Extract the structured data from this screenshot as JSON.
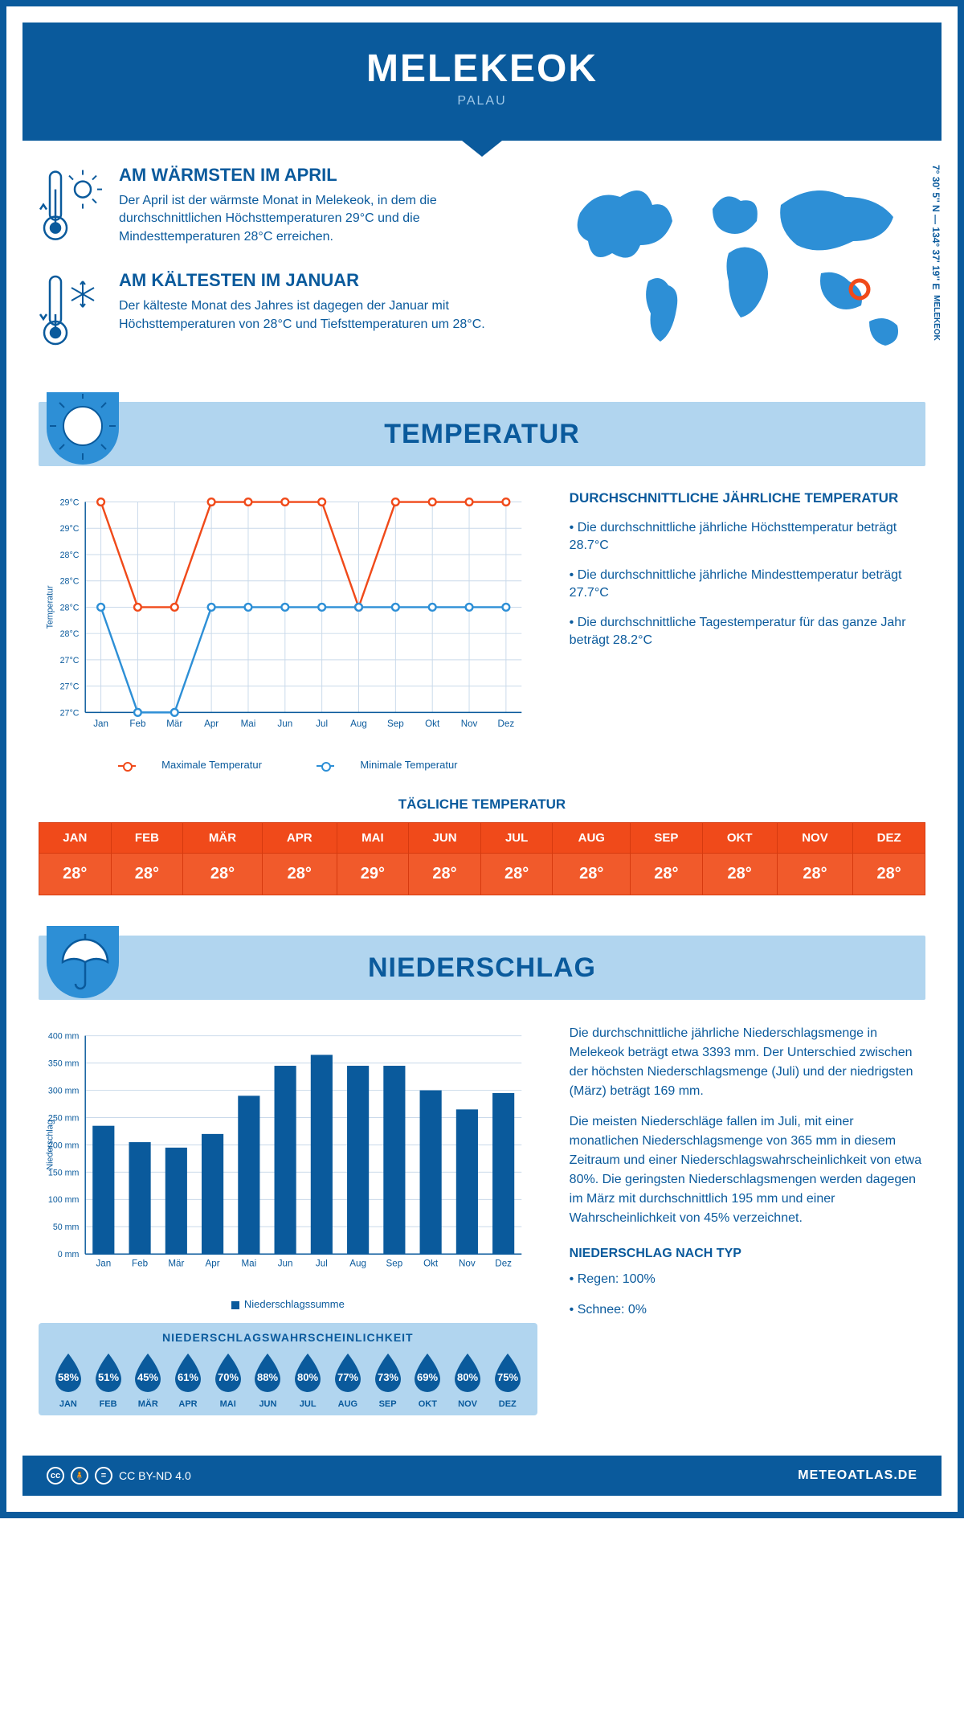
{
  "header": {
    "city": "MELEKEOK",
    "country": "PALAU"
  },
  "coords": "7° 30' 5'' N — 134° 37' 19'' E",
  "coords_label": "MELEKEOK",
  "facts": {
    "warm": {
      "title": "AM WÄRMSTEN IM APRIL",
      "body": "Der April ist der wärmste Monat in Melekeok, in dem die durchschnittlichen Höchsttemperaturen 29°C und die Mindesttemperaturen 28°C erreichen."
    },
    "cold": {
      "title": "AM KÄLTESTEN IM JANUAR",
      "body": "Der kälteste Monat des Jahres ist dagegen der Januar mit Höchsttemperaturen von 28°C und Tiefsttemperaturen um 28°C."
    }
  },
  "sections": {
    "temperature": "TEMPERATUR",
    "precipitation": "NIEDERSCHLAG"
  },
  "months": [
    "Jan",
    "Feb",
    "Mär",
    "Apr",
    "Mai",
    "Jun",
    "Jul",
    "Aug",
    "Sep",
    "Okt",
    "Nov",
    "Dez"
  ],
  "months_upper": [
    "JAN",
    "FEB",
    "MÄR",
    "APR",
    "MAI",
    "JUN",
    "JUL",
    "AUG",
    "SEP",
    "OKT",
    "NOV",
    "DEZ"
  ],
  "temp_chart": {
    "type": "line",
    "y_axis_label": "Temperatur",
    "ylim": [
      27,
      29
    ],
    "ytick_labels": [
      "27°C",
      "27°C",
      "27°C",
      "28°C",
      "28°C",
      "28°C",
      "28°C",
      "29°C",
      "29°C"
    ],
    "ytick_values": [
      27,
      27.25,
      27.5,
      27.75,
      28,
      28.25,
      28.5,
      28.75,
      29
    ],
    "grid_color": "#c9d9ea",
    "series": {
      "max": {
        "label": "Maximale Temperatur",
        "color": "#f04a1a",
        "values": [
          29,
          28,
          28,
          29,
          29,
          29,
          29,
          28,
          29,
          29,
          29,
          29
        ]
      },
      "min": {
        "label": "Minimale Temperatur",
        "color": "#2d8fd6",
        "values": [
          28,
          27,
          27,
          28,
          28,
          28,
          28,
          28,
          28,
          28,
          28,
          28
        ]
      }
    }
  },
  "temp_text": {
    "title": "DURCHSCHNITTLICHE JÄHRLICHE TEMPERATUR",
    "bullets": [
      "• Die durchschnittliche jährliche Höchsttemperatur beträgt 28.7°C",
      "• Die durchschnittliche jährliche Mindesttemperatur beträgt 27.7°C",
      "• Die durchschnittliche Tagestemperatur für das ganze Jahr beträgt 28.2°C"
    ]
  },
  "daily": {
    "title": "TÄGLICHE TEMPERATUR",
    "values": [
      "28°",
      "28°",
      "28°",
      "28°",
      "29°",
      "28°",
      "28°",
      "28°",
      "28°",
      "28°",
      "28°",
      "28°"
    ],
    "header_bg": "#f04a1a",
    "cell_bg": "#f15a2b"
  },
  "precip_chart": {
    "type": "bar",
    "y_axis_label": "Niederschlag",
    "ylim": [
      0,
      400
    ],
    "ytick_step": 50,
    "bar_color": "#0a5a9c",
    "grid_color": "#c9d9ea",
    "legend": "Niederschlagssumme",
    "values": [
      235,
      205,
      195,
      220,
      290,
      345,
      365,
      345,
      345,
      300,
      265,
      295
    ]
  },
  "precip_text": {
    "p1": "Die durchschnittliche jährliche Niederschlagsmenge in Melekeok beträgt etwa 3393 mm. Der Unterschied zwischen der höchsten Niederschlagsmenge (Juli) und der niedrigsten (März) beträgt 169 mm.",
    "p2": "Die meisten Niederschläge fallen im Juli, mit einer monatlichen Niederschlagsmenge von 365 mm in diesem Zeitraum und einer Niederschlagswahrscheinlichkeit von etwa 80%. Die geringsten Niederschlagsmengen werden dagegen im März mit durchschnittlich 195 mm und einer Wahrscheinlichkeit von 45% verzeichnet.",
    "type_title": "NIEDERSCHLAG NACH TYP",
    "type_bullets": [
      "• Regen: 100%",
      "• Schnee: 0%"
    ]
  },
  "prob": {
    "title": "NIEDERSCHLAGSWAHRSCHEINLICHKEIT",
    "values": [
      "58%",
      "51%",
      "45%",
      "61%",
      "70%",
      "88%",
      "80%",
      "77%",
      "73%",
      "69%",
      "80%",
      "75%"
    ],
    "drop_color": "#0a5a9c"
  },
  "footer": {
    "license": "CC BY-ND 4.0",
    "brand": "METEOATLAS.DE"
  }
}
